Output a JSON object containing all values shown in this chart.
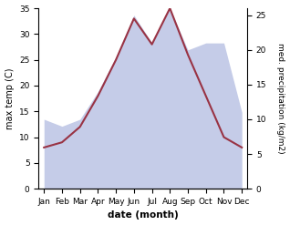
{
  "months": [
    "Jan",
    "Feb",
    "Mar",
    "Apr",
    "May",
    "Jun",
    "Jul",
    "Aug",
    "Sep",
    "Oct",
    "Nov",
    "Dec"
  ],
  "temperature": [
    8,
    9,
    12,
    18,
    25,
    33,
    28,
    35,
    26,
    18,
    10,
    8
  ],
  "precipitation": [
    10,
    9,
    10,
    14,
    19,
    25,
    21,
    26,
    20,
    21,
    21,
    11
  ],
  "temp_color": "#993344",
  "precip_fill_color": "#c5cce8",
  "temp_ylim": [
    0,
    35
  ],
  "precip_ylim": [
    0,
    26
  ],
  "temp_yticks": [
    0,
    5,
    10,
    15,
    20,
    25,
    30,
    35
  ],
  "precip_yticks": [
    0,
    5,
    10,
    15,
    20,
    25
  ],
  "xlabel": "date (month)",
  "ylabel_left": "max temp (C)",
  "ylabel_right": "med. precipitation (kg/m2)",
  "bg_color": "#ffffff",
  "linewidth": 1.5
}
